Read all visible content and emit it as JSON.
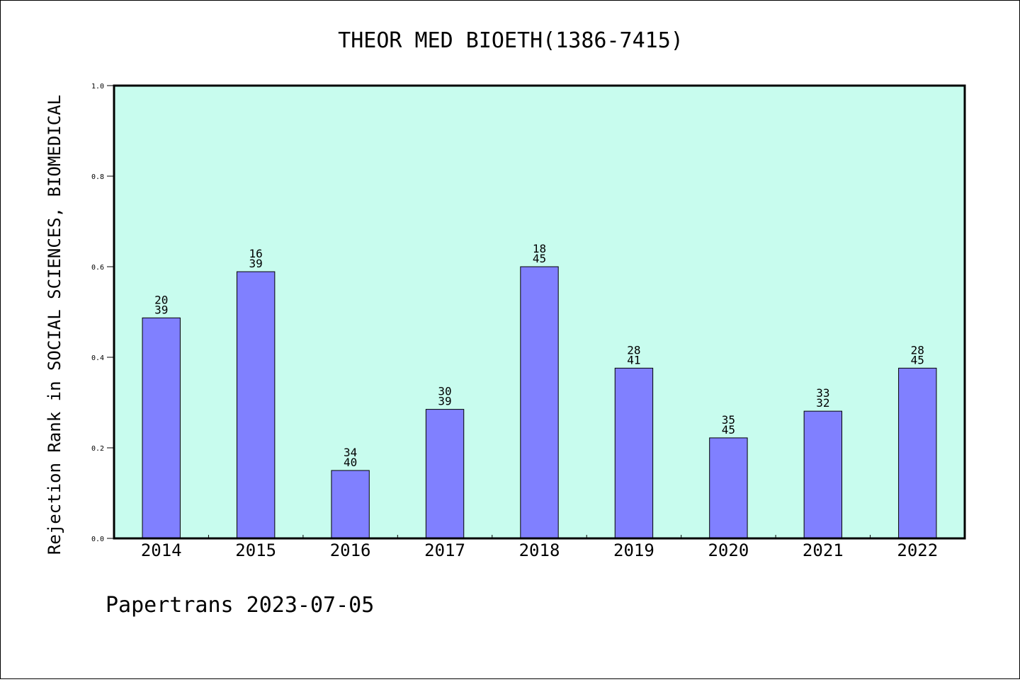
{
  "chart_data": {
    "type": "bar",
    "title": "THEOR MED BIOETH(1386-7415)",
    "xlabel": "",
    "ylabel": "Rejection Rank in SOCIAL SCIENCES, BIOMEDICAL",
    "ylim": [
      0,
      1.0
    ],
    "yticks": [
      "0.0",
      "0.2",
      "0.4",
      "0.6",
      "0.8",
      "1.0"
    ],
    "categories": [
      "2014",
      "2015",
      "2016",
      "2017",
      "2018",
      "2019",
      "2020",
      "2021",
      "2022"
    ],
    "values": [
      0.487,
      0.589,
      0.15,
      0.285,
      0.6,
      0.376,
      0.222,
      0.281,
      0.376
    ],
    "labels_top": [
      "20",
      "16",
      "34",
      "30",
      "18",
      "28",
      "35",
      "33",
      "28"
    ],
    "labels_bottom": [
      "39",
      "39",
      "40",
      "39",
      "45",
      "41",
      "45",
      "32",
      "45"
    ],
    "grid": false,
    "colors": {
      "bar": "#8080ff",
      "plot_background": "#c8fcee",
      "page_background": "#ffffff",
      "axis": "#000000"
    }
  },
  "footer": {
    "text": "Papertrans 2023-07-05"
  }
}
